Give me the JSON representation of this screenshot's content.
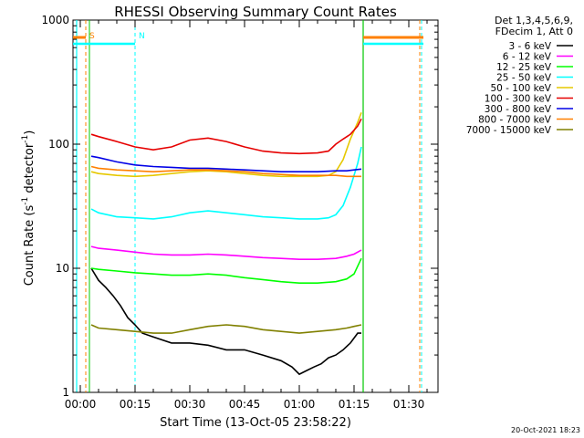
{
  "chart_data": {
    "type": "line",
    "title": "RHESSI Observing Summary Count Rates",
    "xlabel": "Start Time (13-Oct-05 23:58:22)",
    "ylabel_main": "Count Rate (s",
    "ylabel_sup1": "-1",
    "ylabel_mid": " detector",
    "ylabel_sup2": "-1",
    "ylabel_end": ")",
    "yscale": "log",
    "ylim": [
      1,
      1000
    ],
    "xlim_minutes": [
      -2,
      98
    ],
    "x_ticks": [
      {
        "label": "00:00",
        "minutes": 0
      },
      {
        "label": "00:15",
        "minutes": 15
      },
      {
        "label": "00:30",
        "minutes": 30
      },
      {
        "label": "00:45",
        "minutes": 45
      },
      {
        "label": "01:00",
        "minutes": 60
      },
      {
        "label": "01:15",
        "minutes": 75
      },
      {
        "label": "01:30",
        "minutes": 90
      }
    ],
    "y_ticks": [
      {
        "label": "1",
        "value": 1
      },
      {
        "label": "10",
        "value": 10
      },
      {
        "label": "100",
        "value": 100
      },
      {
        "label": "1000",
        "value": 1000
      }
    ],
    "legend_header": [
      "Det 1,3,4,5,6,9,",
      "FDecim 1, Att 0"
    ],
    "legend_placement": "right",
    "series": [
      {
        "name": "3 - 6 keV",
        "color": "#000000",
        "x": [
          3,
          5,
          7,
          9,
          11,
          13,
          15,
          17,
          20,
          25,
          30,
          35,
          40,
          45,
          50,
          55,
          58,
          60,
          62,
          64,
          66,
          68,
          70,
          72,
          74,
          76,
          77
        ],
        "y": [
          10,
          8,
          7,
          6,
          5,
          4,
          3.5,
          3,
          2.8,
          2.5,
          2.5,
          2.4,
          2.2,
          2.2,
          2,
          1.8,
          1.6,
          1.4,
          1.5,
          1.6,
          1.7,
          1.9,
          2,
          2.2,
          2.5,
          3,
          3
        ]
      },
      {
        "name": "6 - 12 keV",
        "color": "#ff00ff",
        "x": [
          3,
          5,
          10,
          15,
          20,
          25,
          30,
          35,
          40,
          45,
          50,
          55,
          60,
          65,
          70,
          73,
          75,
          77
        ],
        "y": [
          15,
          14.5,
          14,
          13.5,
          13,
          12.8,
          12.8,
          13,
          12.8,
          12.5,
          12.2,
          12,
          11.8,
          11.8,
          12,
          12.5,
          13,
          14
        ]
      },
      {
        "name": "12 - 25 keV",
        "color": "#00ff00",
        "x": [
          3,
          5,
          10,
          15,
          20,
          25,
          30,
          35,
          40,
          45,
          50,
          55,
          60,
          65,
          70,
          73,
          75,
          77
        ],
        "y": [
          10,
          9.8,
          9.5,
          9.2,
          9,
          8.8,
          8.8,
          9,
          8.8,
          8.4,
          8.1,
          7.8,
          7.6,
          7.6,
          7.8,
          8.2,
          9,
          12
        ]
      },
      {
        "name": "25 - 50 keV",
        "color": "#00ffff",
        "x": [
          3,
          5,
          10,
          15,
          20,
          25,
          30,
          35,
          40,
          45,
          50,
          55,
          60,
          65,
          68,
          70,
          72,
          74,
          76,
          77
        ],
        "y": [
          30,
          28,
          26,
          25.5,
          25,
          26,
          28,
          29,
          28,
          27,
          26,
          25.5,
          25,
          25,
          25.5,
          27,
          32,
          45,
          70,
          95
        ]
      },
      {
        "name": "50 - 100 keV",
        "color": "#e6c800",
        "x": [
          3,
          5,
          10,
          15,
          20,
          25,
          30,
          35,
          40,
          45,
          50,
          55,
          60,
          65,
          68,
          70,
          72,
          74,
          76,
          77
        ],
        "y": [
          60,
          58,
          56,
          55,
          56,
          58,
          60,
          61,
          60,
          58,
          56,
          55,
          55,
          55,
          56,
          60,
          75,
          110,
          150,
          180
        ]
      },
      {
        "name": "100 - 300 keV",
        "color": "#e60000",
        "x": [
          3,
          5,
          10,
          15,
          20,
          25,
          30,
          35,
          40,
          45,
          50,
          55,
          60,
          65,
          68,
          70,
          72,
          74,
          76,
          77
        ],
        "y": [
          120,
          115,
          105,
          95,
          90,
          95,
          108,
          112,
          105,
          95,
          88,
          85,
          84,
          85,
          88,
          100,
          110,
          120,
          140,
          160
        ]
      },
      {
        "name": "300 - 800 keV",
        "color": "#0000e6",
        "x": [
          3,
          5,
          10,
          15,
          20,
          25,
          30,
          35,
          40,
          45,
          50,
          55,
          60,
          65,
          70,
          73,
          75,
          77
        ],
        "y": [
          80,
          78,
          72,
          68,
          66,
          65,
          64,
          64,
          63,
          62,
          61,
          60,
          60,
          60,
          61,
          61,
          62,
          63
        ]
      },
      {
        "name": "800 - 7000 keV",
        "color": "#ff8000",
        "x": [
          3,
          5,
          10,
          15,
          20,
          25,
          30,
          35,
          40,
          45,
          50,
          55,
          60,
          65,
          70,
          73,
          75,
          77
        ],
        "y": [
          66,
          64,
          62,
          61,
          60,
          61,
          62,
          62,
          61,
          60,
          58,
          57,
          56,
          56,
          56,
          55,
          55,
          55
        ]
      },
      {
        "name": "7000 - 15000 keV",
        "color": "#808000",
        "x": [
          3,
          5,
          10,
          15,
          20,
          25,
          30,
          35,
          40,
          45,
          50,
          55,
          60,
          65,
          70,
          73,
          75,
          77
        ],
        "y": [
          3.5,
          3.3,
          3.2,
          3.1,
          3,
          3,
          3.2,
          3.4,
          3.5,
          3.4,
          3.2,
          3.1,
          3,
          3.1,
          3.2,
          3.3,
          3.4,
          3.5
        ]
      }
    ],
    "annotations": [
      {
        "label": "S",
        "minutes": 1.5,
        "color": "#ff8000"
      },
      {
        "label": "N",
        "minutes": 15,
        "color": "#00ffff"
      }
    ],
    "timestamp": "20-Oct-2021 18:23"
  }
}
